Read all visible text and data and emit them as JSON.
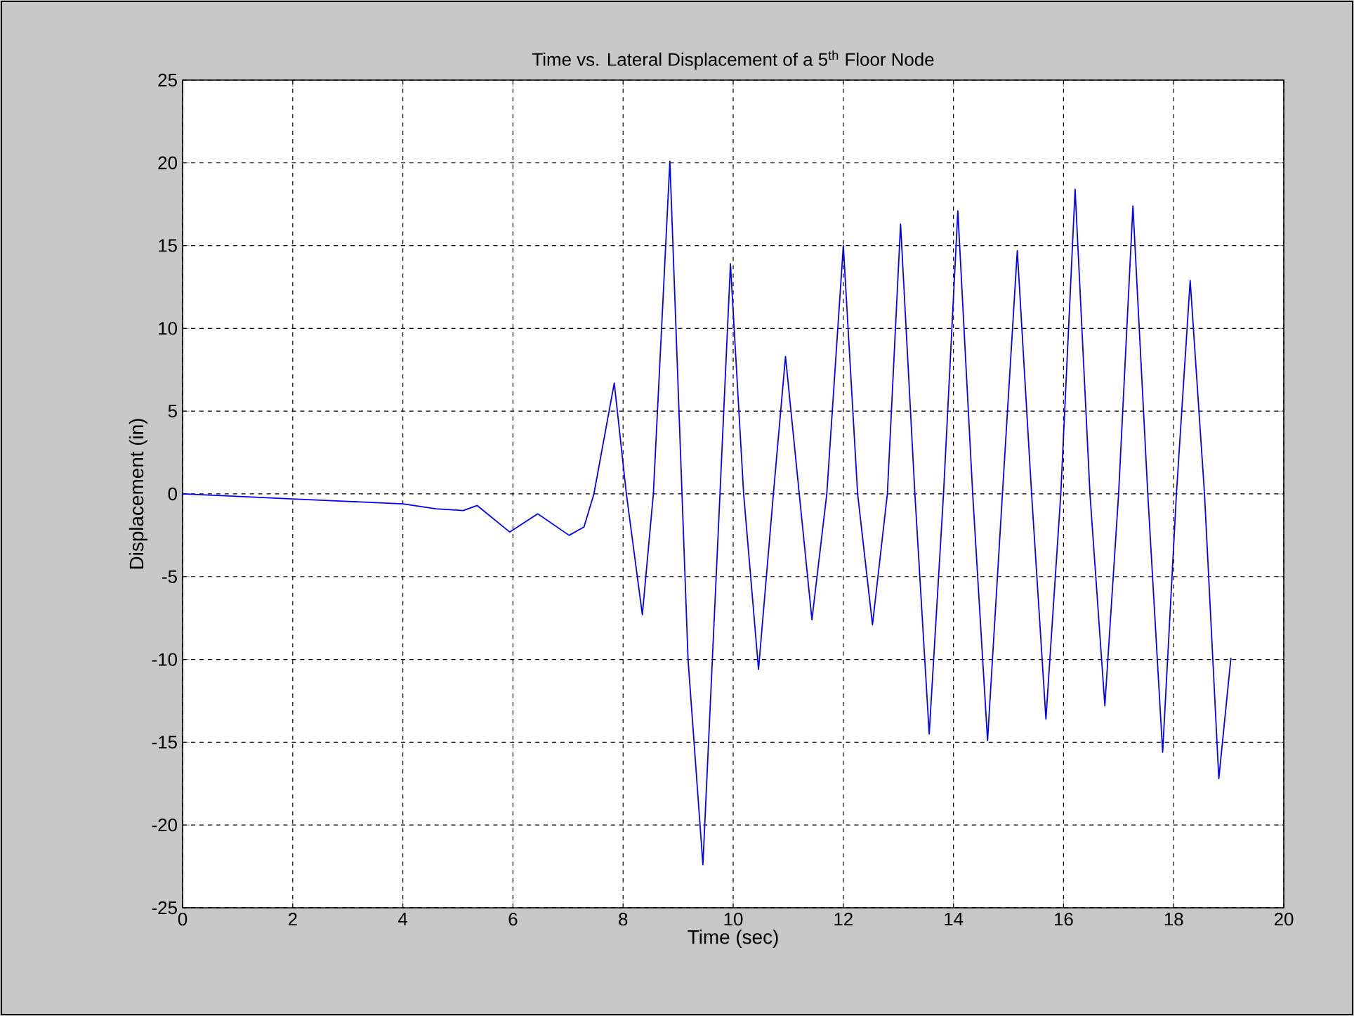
{
  "chart_data": {
    "type": "line",
    "title": "Time vs. Lateral Displacement of a 5$^{th}$ Floor Node",
    "xlabel": "Time (sec)",
    "ylabel": "Displacement (in)",
    "xlim": [
      0,
      20
    ],
    "ylim": [
      -25,
      25
    ],
    "xticks": [
      0,
      2,
      4,
      6,
      8,
      10,
      12,
      14,
      16,
      18,
      20
    ],
    "yticks": [
      -25,
      -20,
      -15,
      -10,
      -5,
      0,
      5,
      10,
      15,
      20,
      25
    ],
    "grid": true,
    "line_style": "solid",
    "series": [
      {
        "color": "#0000ff",
        "x": [
          0,
          0.7,
          2,
          3,
          4,
          4.6,
          5.1,
          5.35,
          5.94,
          6.45,
          7.02,
          7.29,
          7.47,
          7.84,
          8.06,
          8.35,
          8.55,
          8.85,
          9.18,
          9.45,
          9.76,
          9.95,
          10.19,
          10.46,
          10.73,
          10.95,
          11.2,
          11.43,
          11.7,
          12.0,
          12.26,
          12.53,
          12.8,
          13.04,
          13.3,
          13.56,
          13.82,
          14.08,
          14.35,
          14.62,
          14.89,
          15.16,
          15.42,
          15.68,
          15.95,
          16.21,
          16.48,
          16.75,
          17.0,
          17.26,
          17.53,
          17.8,
          18.05,
          18.3,
          18.56,
          18.82,
          19.04
        ],
        "values": [
          0,
          -0.1,
          -0.3,
          -0.45,
          -0.6,
          -0.9,
          -1.0,
          -0.7,
          -2.3,
          -1.2,
          -2.5,
          -2.0,
          0,
          6.7,
          0,
          -7.3,
          0,
          20.1,
          -10,
          -22.4,
          0,
          13.9,
          0,
          -10.6,
          0,
          8.3,
          0,
          -7.6,
          0,
          15.0,
          0,
          -7.9,
          0,
          16.3,
          0,
          -14.5,
          0,
          17.1,
          0,
          -14.9,
          0,
          14.7,
          0,
          -13.6,
          0,
          18.4,
          0,
          -12.8,
          0,
          17.4,
          0,
          -15.6,
          0,
          12.9,
          0,
          -17.2,
          -9.9
        ]
      }
    ]
  }
}
